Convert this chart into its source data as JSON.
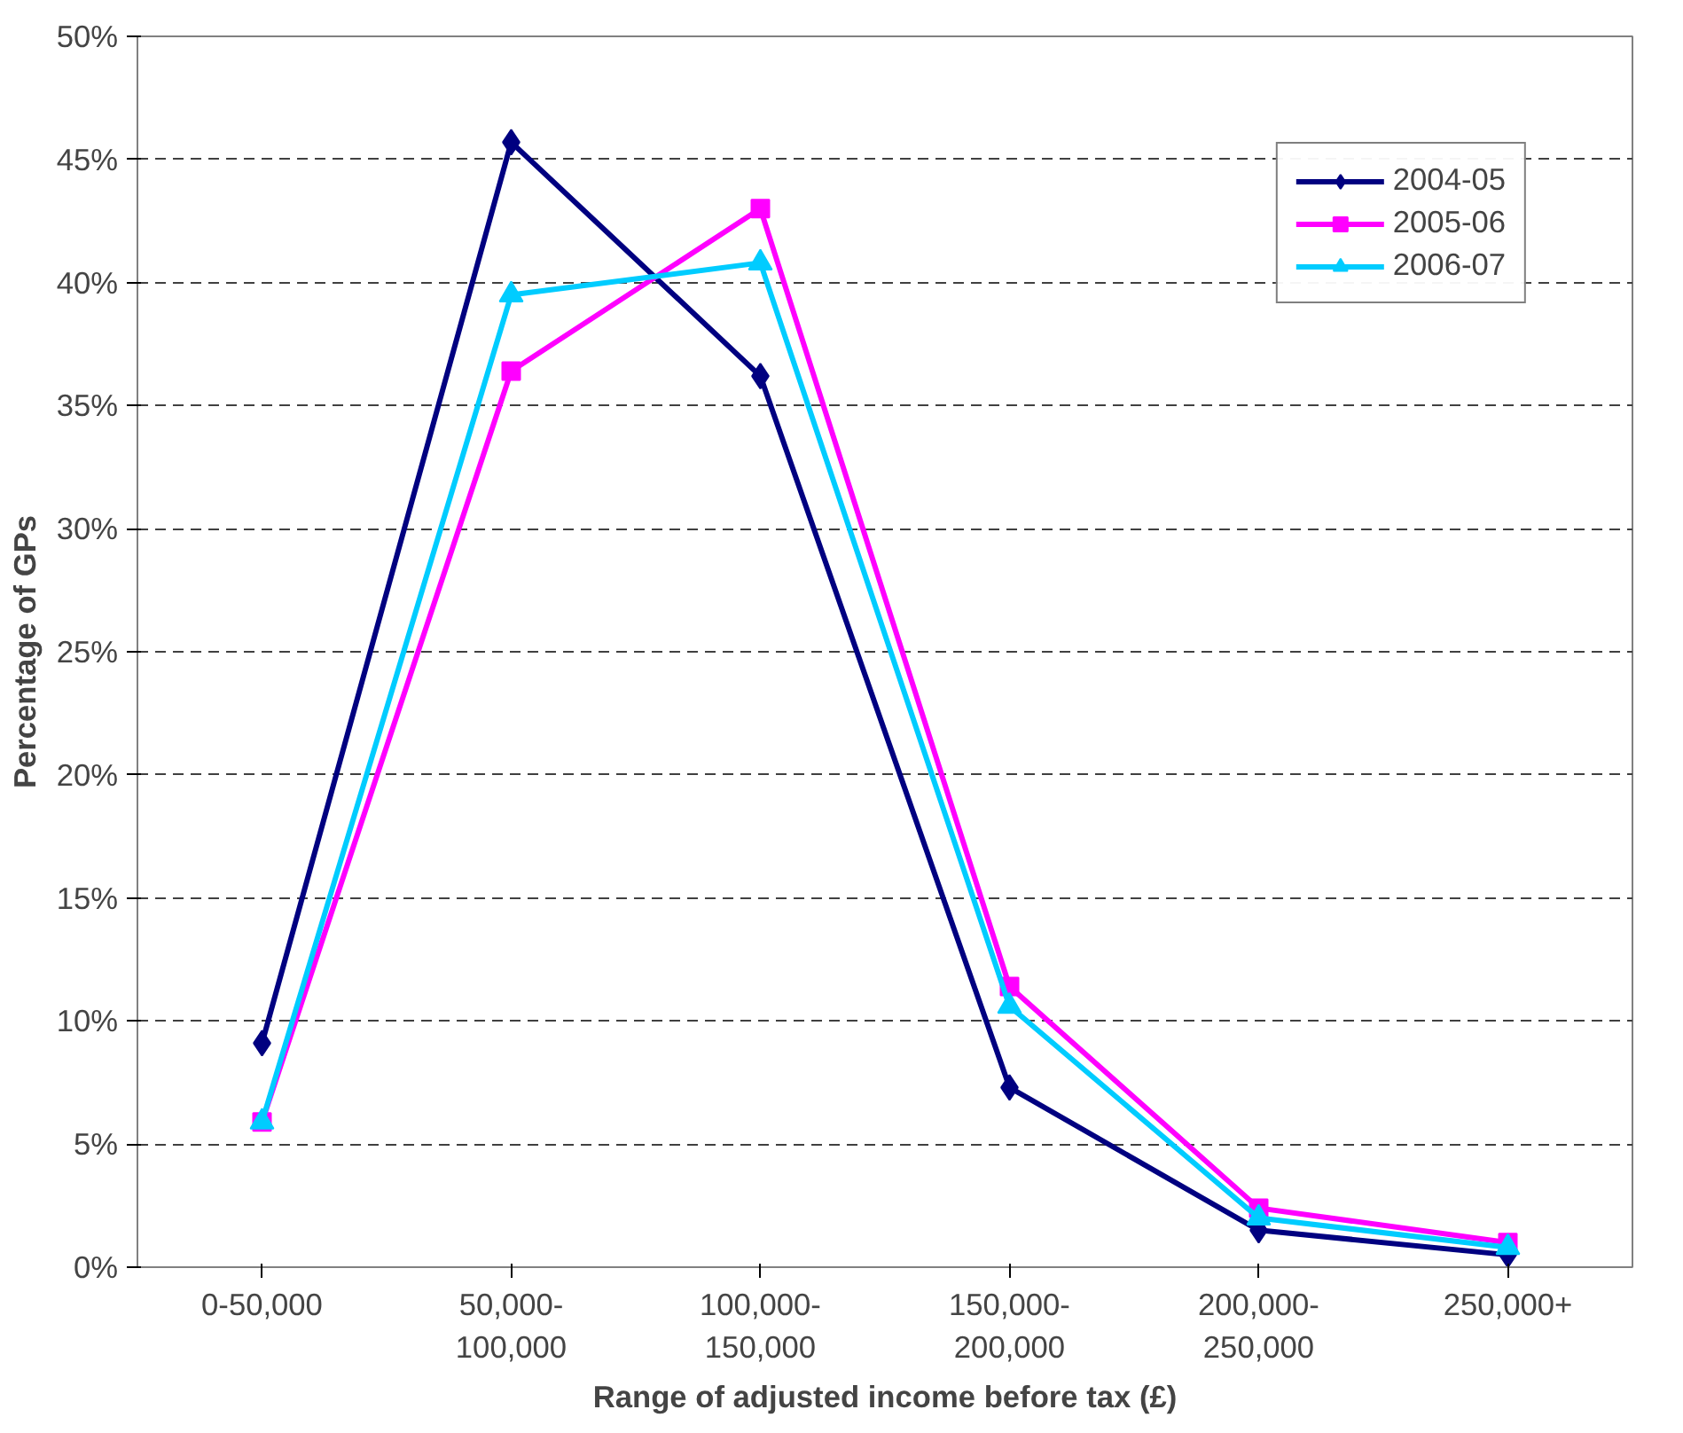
{
  "chart_data": {
    "type": "line",
    "xlabel": "Range of adjusted income before tax (£)",
    "ylabel": "Percentage of GPs",
    "categories": [
      "0-50,000",
      "50,000-\n100,000",
      "100,000-\n150,000",
      "150,000-\n200,000",
      "200,000-\n250,000",
      "250,000+"
    ],
    "series": [
      {
        "name": "2004-05",
        "color": "#000080",
        "marker": "diamond",
        "values": [
          9.1,
          45.7,
          36.2,
          7.3,
          1.5,
          0.5
        ]
      },
      {
        "name": "2005-06",
        "color": "#ff00ff",
        "marker": "square",
        "values": [
          5.9,
          36.4,
          43.0,
          11.4,
          2.4,
          1.0
        ]
      },
      {
        "name": "2006-07",
        "color": "#00ccff",
        "marker": "triangle",
        "values": [
          5.9,
          39.5,
          40.8,
          10.6,
          2.0,
          0.8
        ]
      }
    ],
    "ylim": [
      0,
      50
    ],
    "yticks": [
      {
        "value": 0,
        "label": "0%"
      },
      {
        "value": 5,
        "label": "5%"
      },
      {
        "value": 10,
        "label": "10%"
      },
      {
        "value": 15,
        "label": "15%"
      },
      {
        "value": 20,
        "label": "20%"
      },
      {
        "value": 25,
        "label": "25%"
      },
      {
        "value": 30,
        "label": "30%"
      },
      {
        "value": 35,
        "label": "35%"
      },
      {
        "value": 40,
        "label": "40%"
      },
      {
        "value": 45,
        "label": "45%"
      },
      {
        "value": 50,
        "label": "50%"
      }
    ],
    "grid": "y",
    "legend": "top right",
    "line_style": "solid"
  }
}
